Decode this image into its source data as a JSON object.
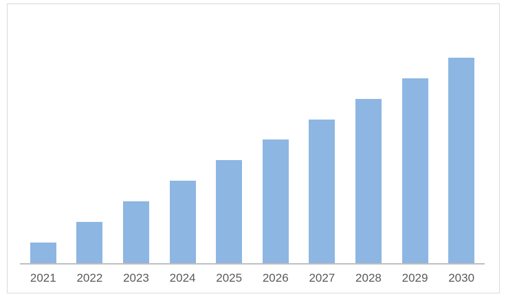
{
  "chart_data": {
    "type": "bar",
    "title": "",
    "xlabel": "",
    "ylabel": "",
    "categories": [
      "2021",
      "2022",
      "2023",
      "2024",
      "2025",
      "2026",
      "2027",
      "2028",
      "2029",
      "2030"
    ],
    "values": [
      1,
      2,
      3,
      4,
      5,
      6,
      7,
      8,
      9,
      10
    ],
    "ylim": [
      0,
      12.6
    ],
    "gridlines": false,
    "legend": "none",
    "y_axis_visible": false,
    "bar_color": "#8DB6E2",
    "axis_line_color": "#BFBFBF",
    "tick_label_color": "#595959"
  },
  "frame": {
    "border_color": "#D9D9D9",
    "background": "#FFFFFF"
  }
}
